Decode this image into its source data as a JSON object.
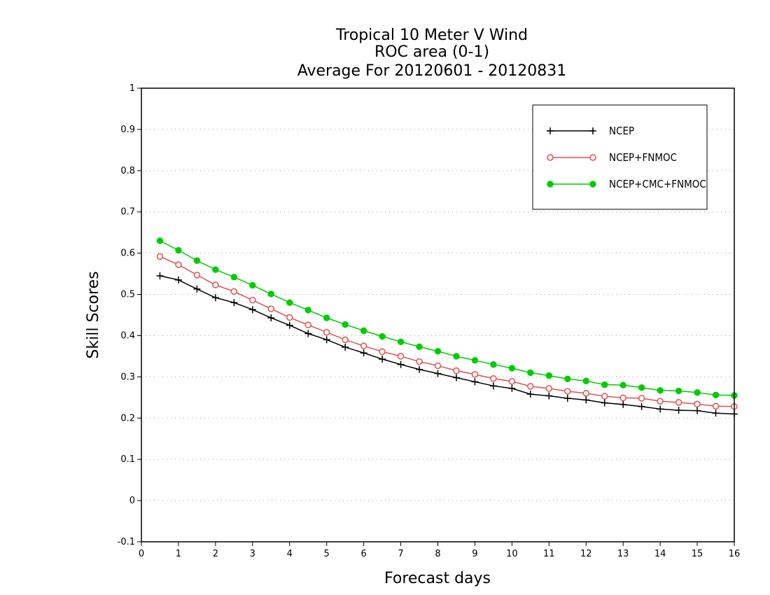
{
  "chart_data": {
    "type": "line",
    "title": [
      "Tropical 10 Meter V Wind",
      "ROC area (0-1)",
      "Average For 20120601 - 20120831"
    ],
    "xlabel": "Forecast days",
    "ylabel": "Skill Scores",
    "xlim": [
      0,
      16
    ],
    "ylim": [
      -0.1,
      1
    ],
    "x_ticks": [
      0,
      1,
      2,
      3,
      4,
      5,
      6,
      7,
      8,
      9,
      10,
      11,
      12,
      13,
      14,
      15,
      16
    ],
    "x_tick_labels": [
      "0",
      "1",
      "2",
      "3",
      "4",
      "5",
      "6",
      "7",
      "8",
      "9",
      "10",
      "11",
      "12",
      "13",
      "14",
      "15",
      "16"
    ],
    "y_ticks": [
      -0.1,
      0,
      0.1,
      0.2,
      0.3,
      0.4,
      0.5,
      0.6,
      0.7,
      0.8,
      0.9,
      1
    ],
    "y_tick_labels": [
      "-0.1",
      "0",
      "0.1",
      "0.2",
      "0.3",
      "0.4",
      "0.5",
      "0.6",
      "0.7",
      "0.8",
      "0.9",
      "1"
    ],
    "grid": "horizontal-dotted",
    "legend_position": "top-right",
    "x": [
      0.5,
      1,
      1.5,
      2,
      2.5,
      3,
      3.5,
      4,
      4.5,
      5,
      5.5,
      6,
      6.5,
      7,
      7.5,
      8,
      8.5,
      9,
      9.5,
      10,
      10.5,
      11,
      11.5,
      12,
      12.5,
      13,
      13.5,
      14,
      14.5,
      15,
      15.5,
      16
    ],
    "series": [
      {
        "name": "NCEP",
        "color": "#000000",
        "marker": "plus",
        "values": [
          0.545,
          0.535,
          0.513,
          0.492,
          0.48,
          0.463,
          0.443,
          0.425,
          0.405,
          0.39,
          0.372,
          0.358,
          0.343,
          0.33,
          0.318,
          0.308,
          0.298,
          0.288,
          0.278,
          0.272,
          0.258,
          0.254,
          0.248,
          0.244,
          0.237,
          0.233,
          0.228,
          0.222,
          0.219,
          0.218,
          0.212,
          0.21
        ]
      },
      {
        "name": "NCEP+FNMOC",
        "color": "#e05050",
        "marker": "open-circle",
        "values": [
          0.592,
          0.572,
          0.547,
          0.523,
          0.507,
          0.486,
          0.465,
          0.444,
          0.426,
          0.408,
          0.39,
          0.375,
          0.361,
          0.35,
          0.337,
          0.327,
          0.315,
          0.306,
          0.296,
          0.289,
          0.277,
          0.272,
          0.265,
          0.26,
          0.253,
          0.249,
          0.248,
          0.241,
          0.238,
          0.234,
          0.229,
          0.228
        ]
      },
      {
        "name": "NCEP+CMC+FNMOC",
        "color": "#00cc00",
        "marker": "filled-circle",
        "values": [
          0.63,
          0.607,
          0.582,
          0.56,
          0.542,
          0.522,
          0.501,
          0.48,
          0.462,
          0.443,
          0.427,
          0.412,
          0.398,
          0.385,
          0.373,
          0.362,
          0.35,
          0.34,
          0.33,
          0.321,
          0.31,
          0.303,
          0.295,
          0.29,
          0.281,
          0.28,
          0.274,
          0.267,
          0.266,
          0.262,
          0.256,
          0.255
        ]
      }
    ]
  }
}
